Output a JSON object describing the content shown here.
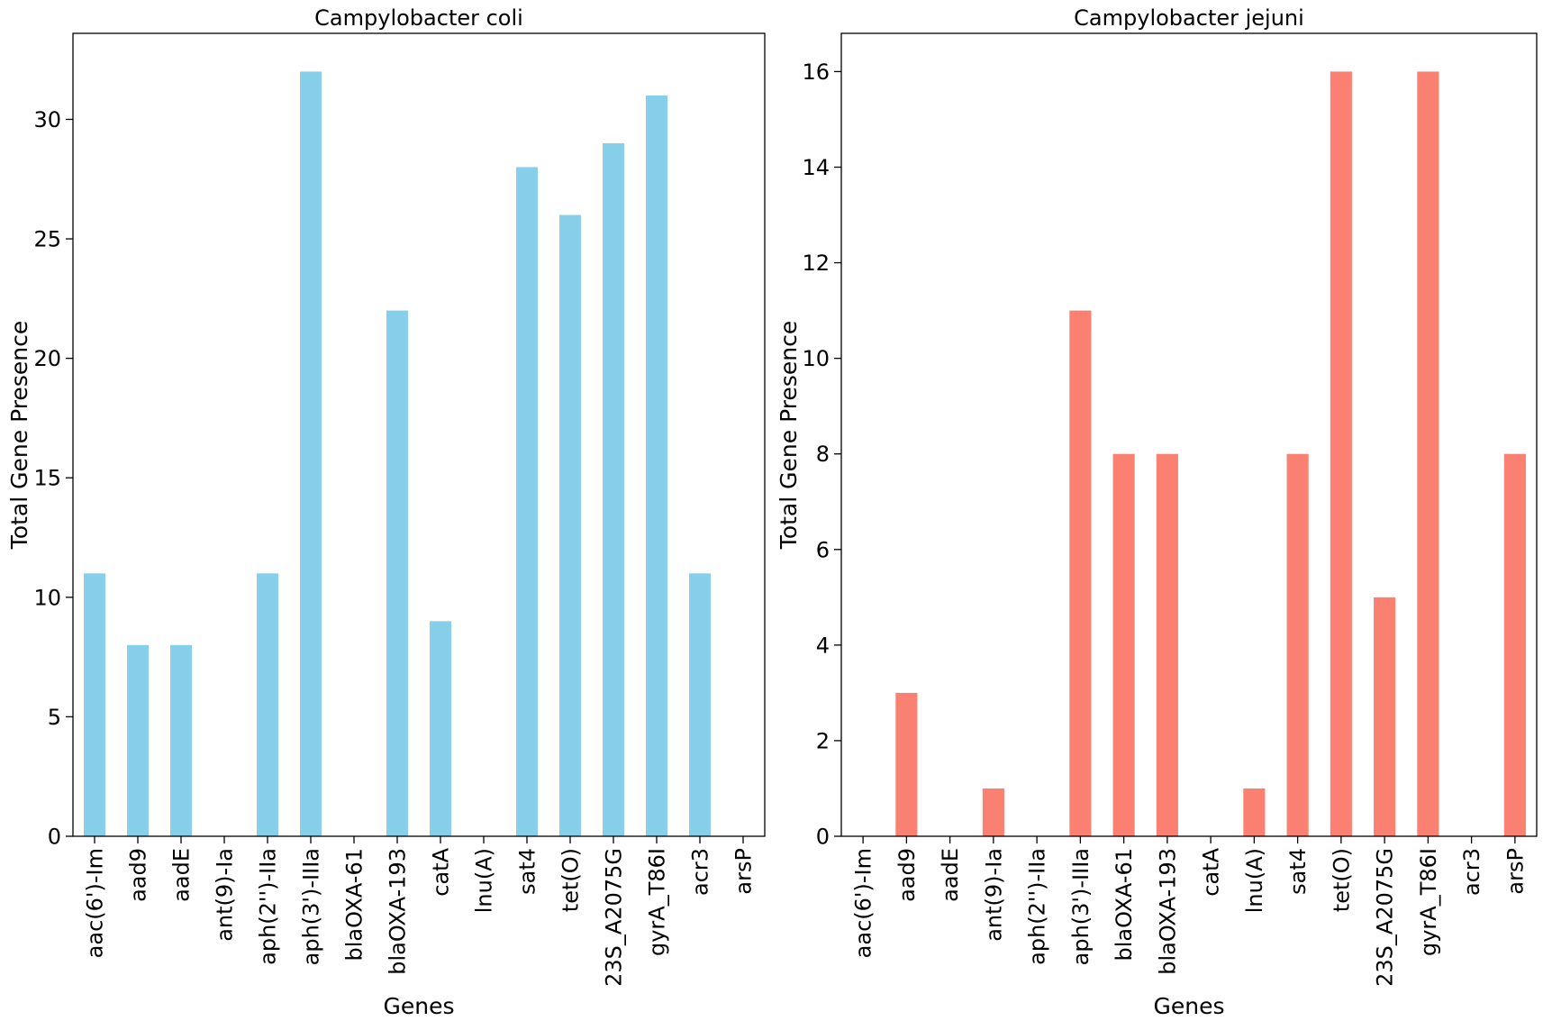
{
  "chart_data": [
    {
      "type": "bar",
      "title": "Campylobacter coli",
      "xlabel": "Genes",
      "ylabel": "Total Gene Presence",
      "ylim": [
        0,
        33.6
      ],
      "yticks": [
        0,
        5,
        10,
        15,
        20,
        25,
        30
      ],
      "color": "#87CEEB",
      "categories": [
        "aac(6')-Im",
        "aad9",
        "aadE",
        "ant(9)-Ia",
        "aph(2'')-IIa",
        "aph(3')-IIIa",
        "blaOXA-61",
        "blaOXA-193",
        "catA",
        "lnu(A)",
        "sat4",
        "tet(O)",
        "23S_A2075G",
        "gyrA_T86I",
        "acr3",
        "arsP"
      ],
      "values": [
        11,
        8,
        8,
        0,
        11,
        32,
        0,
        22,
        9,
        0,
        28,
        26,
        29,
        31,
        11,
        0
      ]
    },
    {
      "type": "bar",
      "title": "Campylobacter jejuni",
      "xlabel": "Genes",
      "ylabel": "Total Gene Presence",
      "ylim": [
        0,
        16.8
      ],
      "yticks": [
        0,
        2,
        4,
        6,
        8,
        10,
        12,
        14,
        16
      ],
      "color": "#FA8072",
      "categories": [
        "aac(6')-Im",
        "aad9",
        "aadE",
        "ant(9)-Ia",
        "aph(2'')-IIa",
        "aph(3')-IIIa",
        "blaOXA-61",
        "blaOXA-193",
        "catA",
        "lnu(A)",
        "sat4",
        "tet(O)",
        "23S_A2075G",
        "gyrA_T86I",
        "acr3",
        "arsP"
      ],
      "values": [
        0,
        3,
        0,
        1,
        0,
        11,
        8,
        8,
        0,
        1,
        8,
        16,
        5,
        16,
        0,
        8
      ]
    }
  ]
}
